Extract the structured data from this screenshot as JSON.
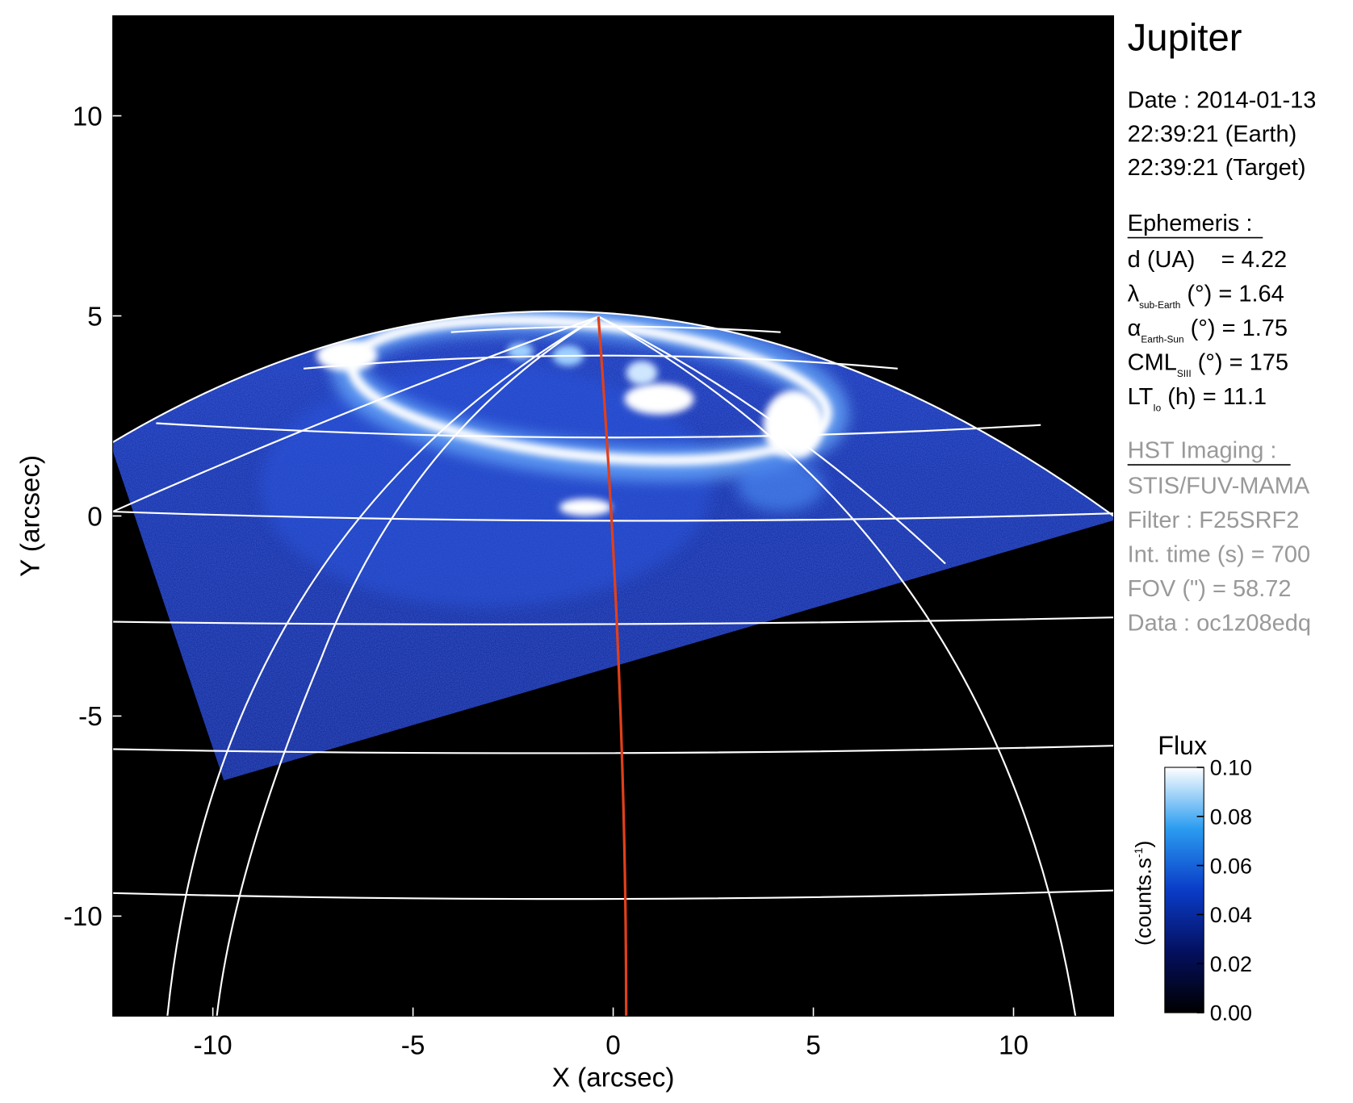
{
  "chart_data": {
    "type": "image",
    "xlabel": "X (arcsec)",
    "ylabel": "Y (arcsec)",
    "xlim": [
      -12.5,
      12.5
    ],
    "ylim": [
      -12.5,
      12.5
    ],
    "xticks": [
      -10,
      -5,
      0,
      5,
      10
    ],
    "yticks": [
      -10,
      -5,
      0,
      5,
      10
    ],
    "colorbar": {
      "title": "Flux",
      "unit": "(counts.s",
      "unit_sup": "-1",
      "unit_end": ")",
      "lim": [
        0,
        0.1
      ],
      "ticks": [
        {
          "value": 0,
          "label": "0.00"
        },
        0.02,
        0.04,
        0.06,
        0.08,
        {
          "value": 0.1,
          "label": "0.10"
        }
      ]
    }
  },
  "info": {
    "title": "Jupiter",
    "date": [
      "Date : 2014-01-13",
      "22:39:21 (Earth)",
      "22:39:21 (Target)"
    ],
    "ephemeris": {
      "heading": "Ephemeris :",
      "lines": [
        {
          "main": "d (UA)    = 4.22"
        },
        {
          "main": "λ",
          "sub": "sub-Earth",
          "rest": " (°) = 1.64"
        },
        {
          "main": "α",
          "sub": "Earth-Sun",
          "rest": " (°) = 1.75"
        },
        {
          "main": "CML",
          "sub": "SIII",
          "rest": " (°) = 175"
        },
        {
          "main": "LT",
          "sub": "Io",
          "rest": " (h) = 11.1"
        }
      ]
    },
    "imaging": {
      "heading": "HST Imaging :",
      "lines": [
        "STIS/FUV-MAMA",
        "Filter : F25SRF2",
        "Int. time (s) = 700",
        "FOV (\") = 58.72",
        "Data : oc1z08edq"
      ]
    }
  }
}
